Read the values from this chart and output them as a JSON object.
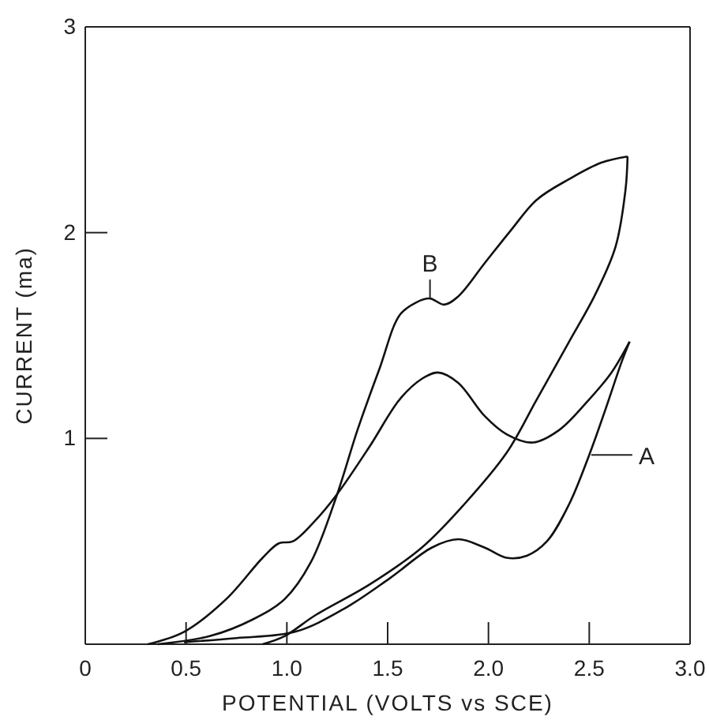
{
  "chart_data": {
    "type": "line",
    "xlabel": "POTENTIAL (VOLTS vs SCE)",
    "ylabel": "CURRENT (ma)",
    "xlim": [
      0,
      3
    ],
    "ylim": [
      0,
      3
    ],
    "xticks": [
      0,
      0.5,
      {
        "value": 1,
        "label": "1.0"
      },
      1.5,
      {
        "value": 2,
        "label": "2.0"
      },
      2.5,
      {
        "value": 3,
        "label": "3.0"
      }
    ],
    "yticks": [
      1,
      2,
      3
    ],
    "grid": false,
    "marker": "none",
    "line_style": "solid",
    "series": [
      {
        "color": "#111111",
        "x": [
          0.31,
          0.49,
          0.7,
          0.88,
          0.96,
          1.03,
          1.14,
          1.25,
          1.41,
          1.56,
          1.67,
          1.75,
          1.85,
          1.98,
          2.09,
          2.22,
          2.35,
          2.5,
          2.61,
          2.7
        ],
        "values": [
          0,
          0.06,
          0.22,
          0.42,
          0.49,
          0.5,
          0.6,
          0.73,
          0.96,
          1.19,
          1.29,
          1.32,
          1.27,
          1.11,
          1.02,
          0.98,
          1.04,
          1.19,
          1.32,
          1.47
        ]
      },
      {
        "color": "#111111",
        "x": [
          0.49,
          0.75,
          1.04,
          1.28,
          1.51,
          1.72,
          1.85,
          1.98,
          2.09,
          2.19,
          2.29,
          2.4,
          2.5,
          2.58,
          2.66,
          2.7
        ],
        "values": [
          0.01,
          0.03,
          0.06,
          0.17,
          0.32,
          0.47,
          0.51,
          0.47,
          0.42,
          0.43,
          0.5,
          0.68,
          0.92,
          1.14,
          1.37,
          1.47
        ]
      },
      {
        "color": "#111111",
        "x": [
          0.36,
          0.62,
          0.83,
          0.99,
          1.12,
          1.25,
          1.35,
          1.46,
          1.56,
          1.64,
          1.71,
          1.78,
          1.85,
          1.98,
          2.11,
          2.24,
          2.4,
          2.56,
          2.69
        ],
        "values": [
          0,
          0.04,
          0.12,
          0.22,
          0.4,
          0.73,
          1.04,
          1.34,
          1.6,
          1.66,
          1.68,
          1.65,
          1.69,
          1.85,
          2.01,
          2.16,
          2.26,
          2.34,
          2.37
        ]
      },
      {
        "color": "#111111",
        "x": [
          0.88,
          0.99,
          1.14,
          1.41,
          1.67,
          1.88,
          2.09,
          2.24,
          2.4,
          2.53,
          2.63,
          2.68,
          2.69
        ],
        "values": [
          0,
          0.04,
          0.14,
          0.29,
          0.47,
          0.68,
          0.93,
          1.19,
          1.47,
          1.7,
          1.93,
          2.21,
          2.37
        ]
      }
    ],
    "annotations": [
      {
        "text": "A",
        "x": 2.51,
        "y": 0.92
      },
      {
        "text": "B",
        "x": 1.71,
        "y": 1.68
      }
    ]
  }
}
